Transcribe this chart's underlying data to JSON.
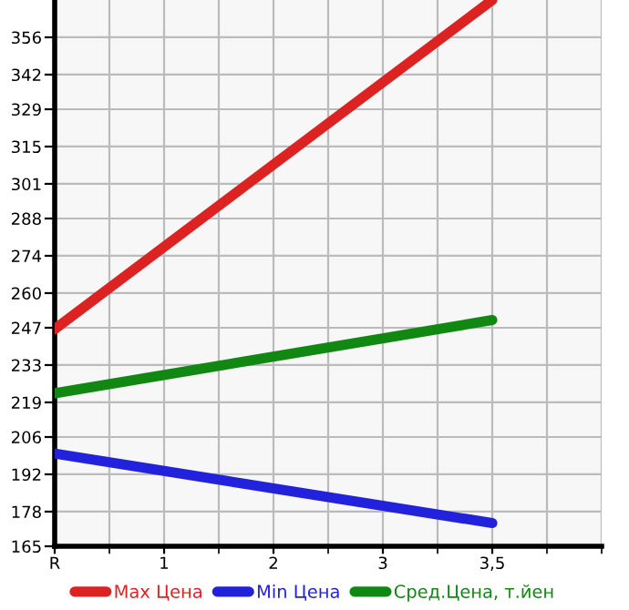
{
  "chart_data": {
    "type": "line",
    "categories": [
      "R",
      "1",
      "2",
      "3",
      "3,5"
    ],
    "series": [
      {
        "name": "Max Цена",
        "color": "#dd2222",
        "values": [
          246.5,
          null,
          null,
          null,
          370
        ]
      },
      {
        "name": "Min Цена",
        "color": "#2222dd",
        "values": [
          199.8,
          null,
          null,
          null,
          173.7
        ]
      },
      {
        "name": "Сред.Цена, т.йен",
        "color": "#118811",
        "values": [
          222.4,
          null,
          null,
          null,
          249.9
        ]
      }
    ],
    "ylim": [
      165,
      370
    ],
    "yticks": [
      165,
      178,
      192,
      206,
      219,
      233,
      247,
      260,
      274,
      288,
      301,
      315,
      329,
      342,
      356
    ],
    "grid": true,
    "legend": "bottom",
    "marker": "none",
    "line_style": "solid"
  }
}
